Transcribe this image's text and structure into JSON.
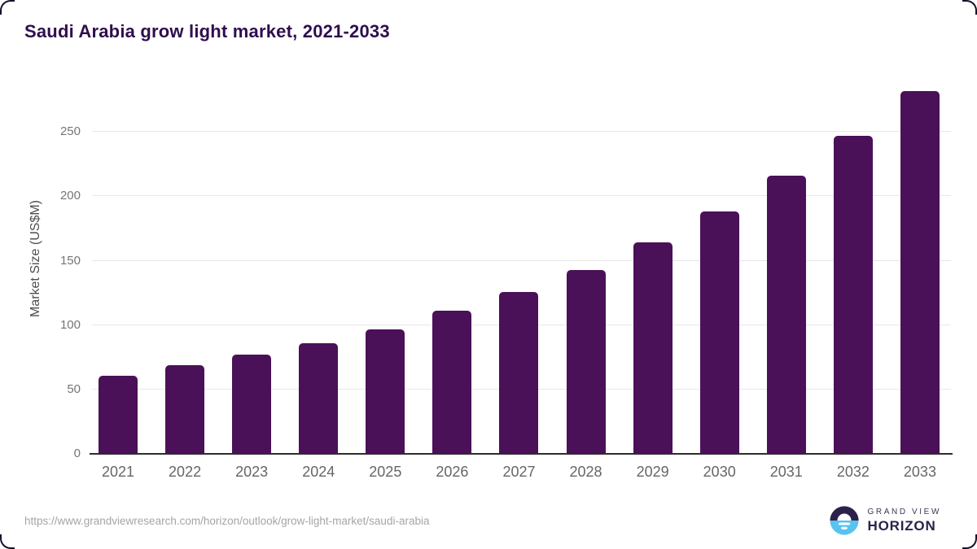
{
  "page": {
    "source_url": "https://www.grandviewresearch.com/horizon/outlook/grow-light-market/saudi-arabia"
  },
  "chart_data": {
    "type": "bar",
    "title": "Saudi Arabia grow light market, 2021-2033",
    "categories": [
      "2021",
      "2022",
      "2023",
      "2024",
      "2025",
      "2026",
      "2027",
      "2028",
      "2029",
      "2030",
      "2031",
      "2032",
      "2033"
    ],
    "values": [
      61,
      69,
      77,
      86,
      97,
      111,
      126,
      143,
      164,
      188,
      216,
      247,
      282
    ],
    "xlabel": "",
    "ylabel": "Market Size (US$M)",
    "ylim": [
      0,
      290
    ],
    "yticks": [
      0,
      50,
      100,
      150,
      200,
      250
    ],
    "grid": true,
    "legend": false,
    "bar_color": "#4a1158"
  },
  "branding": {
    "logo_line1": "GRAND VIEW",
    "logo_line2": "HORIZON",
    "logo_icon": "horizon-sun-icon",
    "colors": {
      "navy": "#2b2149",
      "blue": "#59c3f0"
    }
  },
  "colors": {
    "title": "#2f0e4e",
    "bar": "#4a1158",
    "gridline": "#e8e8e8",
    "axis_line": "#2d2d2d",
    "y_tick_text": "#757575",
    "x_tick_text": "#666666",
    "source_url_text": "#a5a5a5"
  }
}
